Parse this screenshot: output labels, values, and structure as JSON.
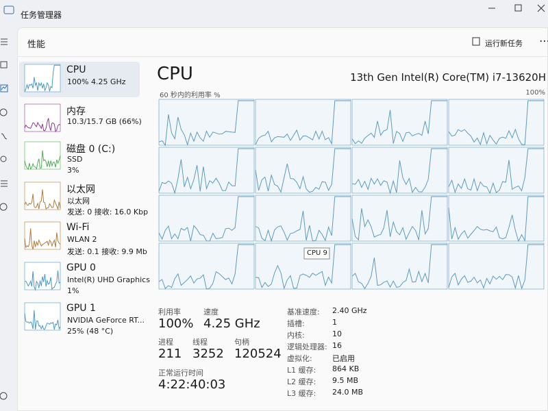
{
  "window": {
    "title": "任务管理器"
  },
  "header": {
    "title": "性能",
    "action": "运行新任务"
  },
  "sidebar": [
    {
      "name": "CPU",
      "lines": [
        "100%  4.25 GHz"
      ]
    },
    {
      "name": "内存",
      "lines": [
        "10.3/15.7 GB (66%)"
      ]
    },
    {
      "name": "磁盘 0 (C:)",
      "lines": [
        "SSD",
        "3%"
      ]
    },
    {
      "name": "以太网",
      "lines": [
        "以太网",
        "发送: 0 接收: 16.0 Kbp"
      ]
    },
    {
      "name": "Wi-Fi",
      "lines": [
        "WLAN 2",
        "发送: 0.1 接收: 9.9 Mb"
      ]
    },
    {
      "name": "GPU 0",
      "lines": [
        "Intel(R) UHD Graphics",
        "1%"
      ]
    },
    {
      "name": "GPU 1",
      "lines": [
        "NVIDIA GeForce RT...",
        "25% (48 °C)"
      ]
    }
  ],
  "main": {
    "title": "CPU",
    "model": "13th Gen Intel(R) Core(TM) i7-13620H",
    "graph_label": "60 秒内的利用率 %",
    "graph_max": "100%",
    "tooltip": "CPU 9",
    "stats": [
      {
        "label": "利用率",
        "value": "100%"
      },
      {
        "label": "速度",
        "value": "4.25 GHz"
      },
      {
        "label": "进程",
        "value": "211"
      },
      {
        "label": "线程",
        "value": "3252"
      },
      {
        "label": "句柄",
        "value": "120524"
      },
      {
        "label": "正常运行时间",
        "value": "4:22:40:03"
      }
    ],
    "details": [
      [
        "基准速度:",
        "2.40 GHz"
      ],
      [
        "插槽:",
        "1"
      ],
      [
        "内核:",
        "10"
      ],
      [
        "逻辑处理器:",
        "16"
      ],
      [
        "虚拟化:",
        "已启用"
      ],
      [
        "L1 缓存:",
        "864 KB"
      ],
      [
        "L2 缓存:",
        "9.5 MB"
      ],
      [
        "L3 缓存:",
        "24.0 MB"
      ]
    ]
  }
}
